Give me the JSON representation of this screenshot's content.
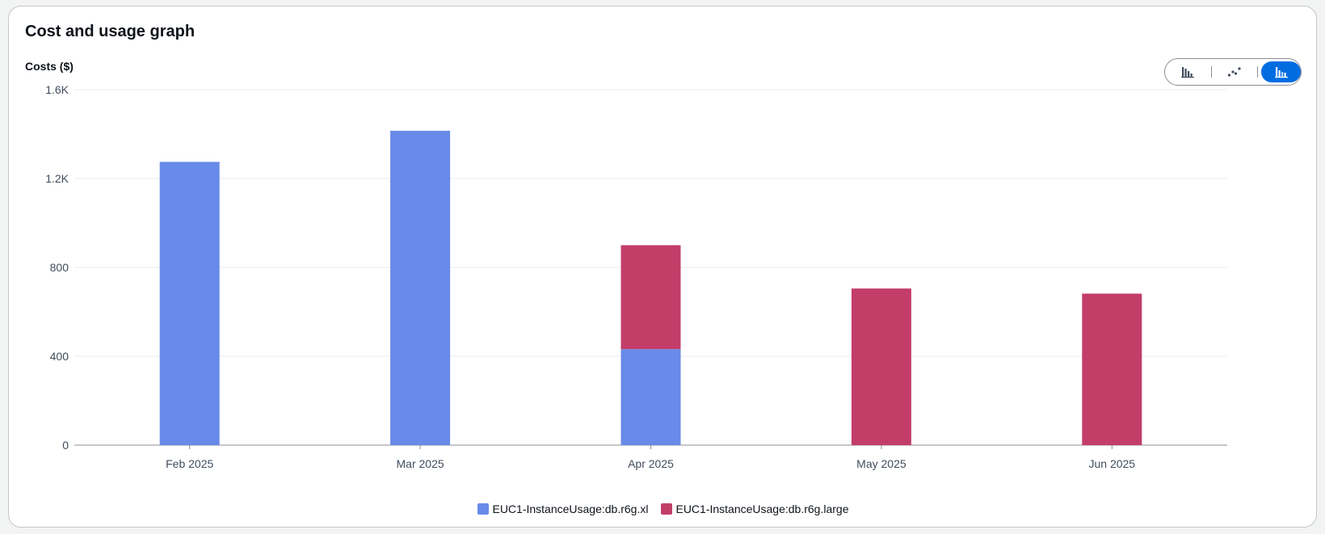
{
  "panel": {
    "title": "Cost and usage graph"
  },
  "chart_data": {
    "type": "bar",
    "stacked": true,
    "title": "Cost and usage graph",
    "ylabel": "Costs ($)",
    "xlabel": "",
    "ylim": [
      0,
      1600
    ],
    "yticks": [
      0,
      400,
      800,
      1200,
      1600
    ],
    "ytick_labels": [
      "0",
      "400",
      "800",
      "1.2K",
      "1.6K"
    ],
    "categories": [
      "Feb 2025",
      "Mar 2025",
      "Apr 2025",
      "May 2025",
      "Jun 2025"
    ],
    "series": [
      {
        "name": "EUC1-InstanceUsage:db.r6g.xl",
        "color": "#688ae8",
        "values": [
          1275,
          1415,
          432,
          0,
          0
        ]
      },
      {
        "name": "EUC1-InstanceUsage:db.r6g.large",
        "color": "#c33d69",
        "values": [
          0,
          0,
          468,
          705,
          682
        ]
      }
    ],
    "grid": true,
    "legend": "bottom-center"
  },
  "view_toggle": {
    "options": [
      {
        "name": "bar-chart-icon",
        "active": false
      },
      {
        "name": "line-chart-icon",
        "active": false
      },
      {
        "name": "stacked-bar-chart-icon",
        "active": true
      }
    ]
  }
}
